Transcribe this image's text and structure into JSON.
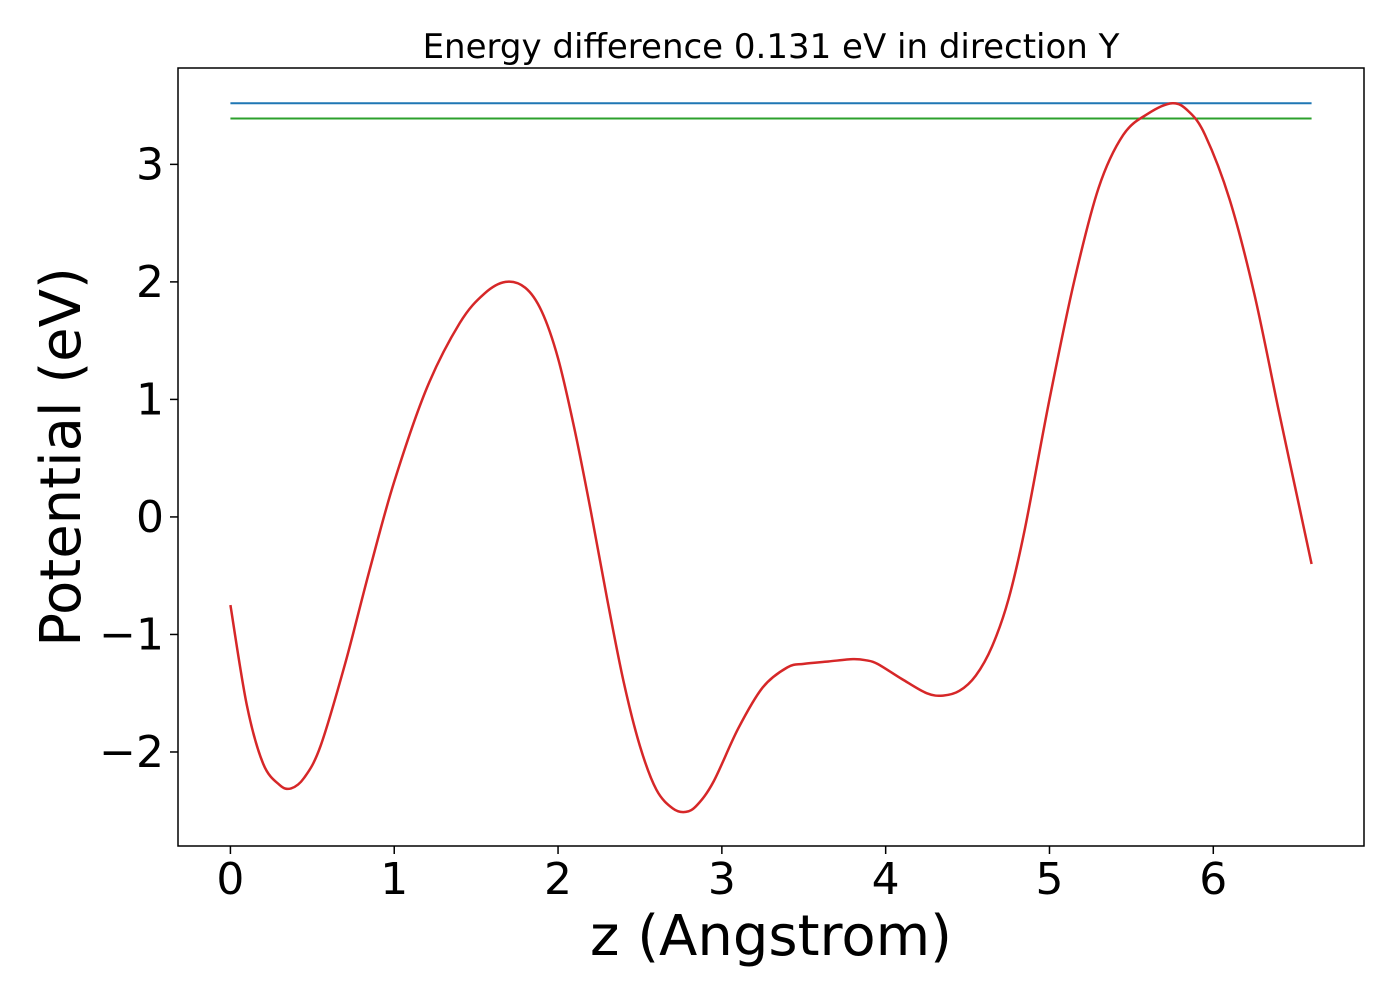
{
  "chart_data": {
    "type": "line",
    "title": "Energy difference 0.131 eV in direction Y",
    "xlabel": "z (Angstrom)",
    "ylabel": "Potential (eV)",
    "xlim": [
      -0.32,
      6.92
    ],
    "ylim": [
      -2.8,
      3.82
    ],
    "xticks": [
      0,
      1,
      2,
      3,
      4,
      5,
      6
    ],
    "yticks": [
      -2,
      -1,
      0,
      1,
      2,
      3
    ],
    "xtick_labels": [
      "0",
      "1",
      "2",
      "3",
      "4",
      "5",
      "6"
    ],
    "ytick_labels": [
      "−2",
      "−1",
      "0",
      "1",
      "2",
      "3"
    ],
    "grid": false,
    "colors": {
      "potential": "#d62728",
      "max_level": "#1f77b4",
      "second_level": "#2ca02c"
    },
    "hlines": [
      {
        "y": 3.52,
        "x": [
          0,
          6.6
        ],
        "color": "#1f77b4"
      },
      {
        "y": 3.39,
        "x": [
          0,
          6.6
        ],
        "color": "#2ca02c"
      }
    ],
    "series": [
      {
        "color": "#d62728",
        "x": [
          0,
          0.1,
          0.2,
          0.3,
          0.37,
          0.45,
          0.55,
          0.7,
          0.85,
          1.0,
          1.2,
          1.4,
          1.55,
          1.68,
          1.8,
          1.9,
          2.0,
          2.1,
          2.2,
          2.3,
          2.4,
          2.5,
          2.6,
          2.7,
          2.78,
          2.85,
          2.95,
          3.1,
          3.25,
          3.4,
          3.5,
          3.65,
          3.8,
          3.88,
          3.95,
          4.1,
          4.25,
          4.35,
          4.45,
          4.55,
          4.65,
          4.75,
          4.85,
          5.0,
          5.15,
          5.3,
          5.45,
          5.6,
          5.75,
          5.85,
          5.95,
          6.1,
          6.25,
          6.4,
          6.5,
          6.6
        ],
        "y": [
          -0.75,
          -1.6,
          -2.1,
          -2.28,
          -2.31,
          -2.22,
          -1.95,
          -1.25,
          -0.45,
          0.3,
          1.1,
          1.65,
          1.9,
          2.0,
          1.95,
          1.75,
          1.35,
          0.75,
          0.05,
          -0.7,
          -1.4,
          -1.95,
          -2.32,
          -2.48,
          -2.51,
          -2.45,
          -2.25,
          -1.8,
          -1.45,
          -1.28,
          -1.25,
          -1.23,
          -1.21,
          -1.22,
          -1.25,
          -1.38,
          -1.5,
          -1.52,
          -1.48,
          -1.35,
          -1.1,
          -0.7,
          -0.1,
          1.0,
          2.0,
          2.8,
          3.25,
          3.43,
          3.52,
          3.45,
          3.25,
          2.7,
          1.9,
          0.9,
          0.25,
          -0.4
        ]
      }
    ]
  }
}
